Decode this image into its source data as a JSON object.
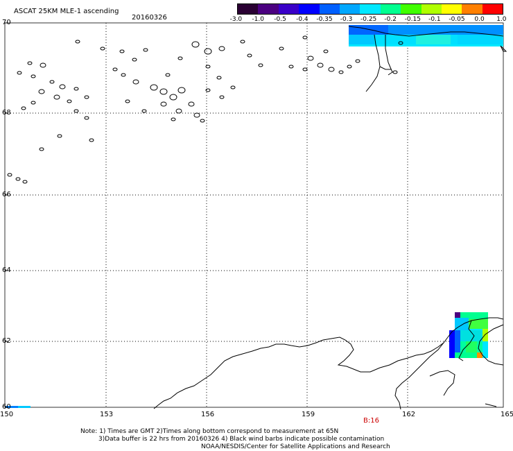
{
  "header": {
    "title": "ASCAT 25KM MLE-1 ascending",
    "date": "20160326"
  },
  "colorbar": {
    "labels": [
      "-3.0",
      "-1.0",
      "-0.5",
      "-0.4",
      "-0.35",
      "-0.3",
      "-0.25",
      "-0.2",
      "-0.15",
      "-0.1",
      "-0.05",
      "0.0",
      "1.0"
    ],
    "colors": [
      "#2a0033",
      "#4b0080",
      "#3a00c8",
      "#0000ff",
      "#0060ff",
      "#00a8ff",
      "#00e8ff",
      "#00ff90",
      "#40ff00",
      "#b0ff00",
      "#ffff00",
      "#ff8000",
      "#ff0000"
    ]
  },
  "axes": {
    "lat_labels": [
      "70",
      "68",
      "66",
      "64",
      "62",
      "60"
    ],
    "lon_labels": [
      "150",
      "153",
      "156",
      "159",
      "162",
      "165"
    ]
  },
  "time_marker": "B:16",
  "footer": {
    "line1": "Note: 1) Times are GMT 2)Times along bottom correspond to measurement at 65N",
    "line2": "3)Data buffer is 22 hrs from 20160326 4) Black wind barbs indicate possible contamination",
    "line3": "NOAA/NESDIS/Center for Satellite Applications and Research"
  },
  "colors": {
    "grid": "#000000",
    "background": "#ffffff",
    "time_marker": "#cc0000"
  }
}
